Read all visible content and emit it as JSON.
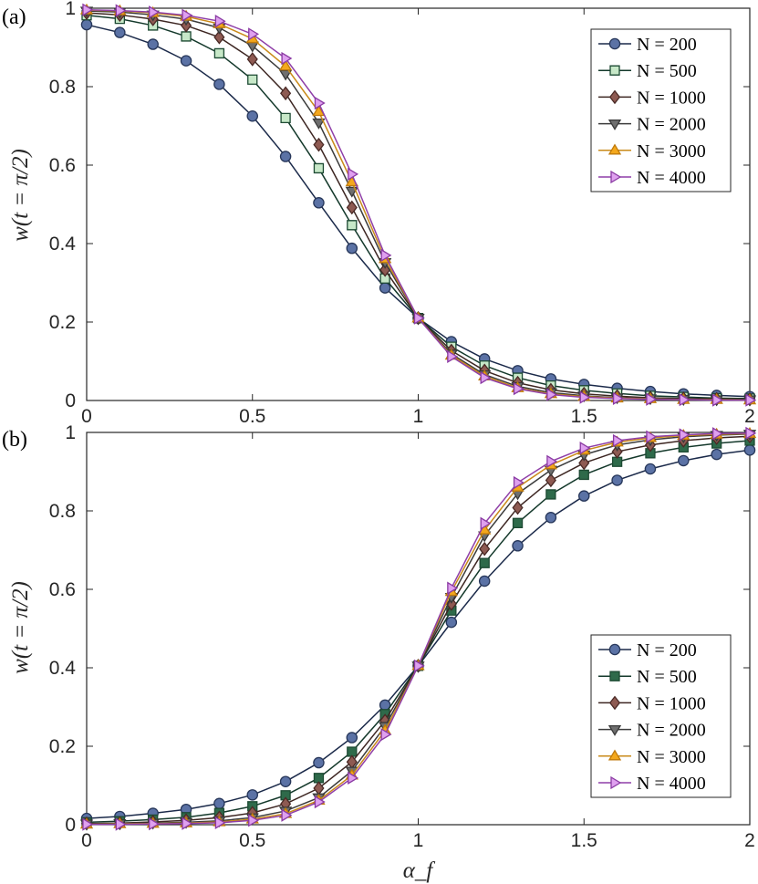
{
  "chart_data": [
    {
      "type": "line",
      "panel_label": "(a)",
      "ylabel": "w(t = π/2)",
      "xlabel": "",
      "xlim": [
        0,
        2
      ],
      "ylim": [
        0,
        1
      ],
      "x_ticks": [
        "0",
        "0.5",
        "1",
        "1.5",
        "2"
      ],
      "y_ticks": [
        "0",
        "0.2",
        "0.4",
        "0.6",
        "0.8",
        "1"
      ],
      "grid": false,
      "legend_position": "top-right",
      "x": [
        0,
        0.1,
        0.2,
        0.3,
        0.4,
        0.5,
        0.6,
        0.7,
        0.8,
        0.9,
        1.0,
        1.1,
        1.2,
        1.3,
        1.4,
        1.5,
        1.6,
        1.7,
        1.8,
        1.9,
        2.0
      ],
      "series": [
        {
          "name": "N = 200",
          "values": [
            0.958,
            0.938,
            0.908,
            0.866,
            0.806,
            0.725,
            0.622,
            0.504,
            0.388,
            0.287,
            0.21,
            0.15,
            0.106,
            0.076,
            0.055,
            0.041,
            0.031,
            0.023,
            0.017,
            0.013,
            0.01
          ]
        },
        {
          "name": "N = 500",
          "values": [
            0.982,
            0.973,
            0.956,
            0.928,
            0.885,
            0.818,
            0.72,
            0.592,
            0.447,
            0.311,
            0.21,
            0.137,
            0.089,
            0.058,
            0.038,
            0.026,
            0.018,
            0.012,
            0.009,
            0.006,
            0.005
          ]
        },
        {
          "name": "N = 1000",
          "values": [
            0.988,
            0.983,
            0.972,
            0.956,
            0.926,
            0.87,
            0.783,
            0.652,
            0.492,
            0.333,
            0.21,
            0.127,
            0.076,
            0.045,
            0.027,
            0.017,
            0.011,
            0.007,
            0.005,
            0.004,
            0.003
          ]
        },
        {
          "name": "N = 2000",
          "values": [
            0.993,
            0.99,
            0.983,
            0.972,
            0.95,
            0.904,
            0.832,
            0.708,
            0.534,
            0.352,
            0.21,
            0.119,
            0.066,
            0.036,
            0.02,
            0.012,
            0.007,
            0.005,
            0.003,
            0.002,
            0.002
          ]
        },
        {
          "name": "N = 3000",
          "values": [
            0.995,
            0.993,
            0.988,
            0.979,
            0.96,
            0.922,
            0.852,
            0.736,
            0.557,
            0.361,
            0.21,
            0.115,
            0.062,
            0.032,
            0.017,
            0.01,
            0.006,
            0.004,
            0.002,
            0.002,
            0.001
          ]
        },
        {
          "name": "N = 4000",
          "values": [
            0.996,
            0.994,
            0.99,
            0.982,
            0.967,
            0.934,
            0.872,
            0.758,
            0.577,
            0.37,
            0.21,
            0.112,
            0.058,
            0.03,
            0.015,
            0.008,
            0.005,
            0.003,
            0.002,
            0.001,
            0.001
          ]
        }
      ]
    },
    {
      "type": "line",
      "panel_label": "(b)",
      "ylabel": "w(t = π/2)",
      "xlabel": "α_f",
      "xlim": [
        0,
        2
      ],
      "ylim": [
        0,
        1
      ],
      "x_ticks": [
        "0",
        "0.5",
        "1",
        "1.5",
        "2"
      ],
      "y_ticks": [
        "0",
        "0.2",
        "0.4",
        "0.6",
        "0.8",
        "1"
      ],
      "grid": false,
      "legend_position": "bottom-right",
      "x": [
        0,
        0.1,
        0.2,
        0.3,
        0.4,
        0.5,
        0.6,
        0.7,
        0.8,
        0.9,
        1.0,
        1.1,
        1.2,
        1.3,
        1.4,
        1.5,
        1.6,
        1.7,
        1.8,
        1.9,
        2.0
      ],
      "series": [
        {
          "name": "N = 200",
          "values": [
            0.016,
            0.021,
            0.029,
            0.039,
            0.054,
            0.076,
            0.11,
            0.158,
            0.222,
            0.305,
            0.405,
            0.516,
            0.621,
            0.711,
            0.783,
            0.838,
            0.878,
            0.907,
            0.928,
            0.944,
            0.955
          ]
        },
        {
          "name": "N = 500",
          "values": [
            0.006,
            0.009,
            0.013,
            0.019,
            0.03,
            0.047,
            0.075,
            0.119,
            0.186,
            0.282,
            0.405,
            0.546,
            0.667,
            0.769,
            0.842,
            0.892,
            0.925,
            0.947,
            0.962,
            0.972,
            0.979
          ]
        },
        {
          "name": "N = 1000",
          "values": [
            0.003,
            0.004,
            0.007,
            0.011,
            0.018,
            0.03,
            0.053,
            0.093,
            0.16,
            0.265,
            0.405,
            0.563,
            0.703,
            0.808,
            0.878,
            0.922,
            0.951,
            0.968,
            0.979,
            0.986,
            0.99
          ]
        },
        {
          "name": "N = 2000",
          "values": [
            0.002,
            0.003,
            0.004,
            0.006,
            0.01,
            0.018,
            0.035,
            0.069,
            0.137,
            0.251,
            0.405,
            0.58,
            0.737,
            0.844,
            0.904,
            0.943,
            0.968,
            0.981,
            0.989,
            0.993,
            0.996
          ]
        },
        {
          "name": "N = 3000",
          "values": [
            0.001,
            0.002,
            0.003,
            0.004,
            0.007,
            0.014,
            0.028,
            0.062,
            0.126,
            0.24,
            0.405,
            0.594,
            0.751,
            0.86,
            0.917,
            0.954,
            0.975,
            0.986,
            0.992,
            0.995,
            0.997
          ]
        },
        {
          "name": "N = 4000",
          "values": [
            0.001,
            0.001,
            0.002,
            0.003,
            0.005,
            0.011,
            0.024,
            0.058,
            0.119,
            0.23,
            0.405,
            0.603,
            0.768,
            0.872,
            0.926,
            0.96,
            0.979,
            0.989,
            0.994,
            0.997,
            0.998
          ]
        }
      ]
    }
  ],
  "styles": {
    "axis_color": "#262626",
    "series": [
      {
        "marker": "circle",
        "line": "#1b2a4a",
        "fill": "#5b72a5",
        "edge": "#27375a"
      },
      {
        "marker": "square",
        "line": "#14392b",
        "fill_a": "#c7e8c8",
        "fill_b": "#2e6a4a",
        "edge": "#1d4a33"
      },
      {
        "marker": "diamond",
        "line": "#3d2622",
        "fill": "#8e5a52",
        "edge": "#4a2a26"
      },
      {
        "marker": "triangle-down",
        "line": "#3b3b3b",
        "fill": "#6f6f6f",
        "edge": "#3a3a3a"
      },
      {
        "marker": "triangle-up",
        "line": "#c98a1a",
        "fill": "#f4a81c",
        "edge": "#c07a0b"
      },
      {
        "marker": "triangle-right",
        "line": "#8f3fa8",
        "fill": "#dfa0ef",
        "edge": "#8a3aa3"
      }
    ]
  }
}
